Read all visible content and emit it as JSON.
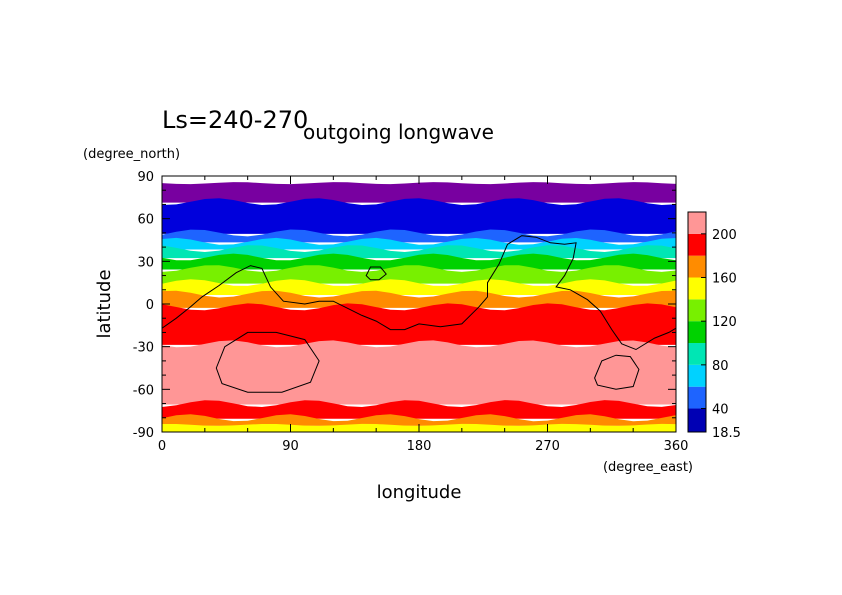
{
  "chart_data": {
    "type": "heatmap",
    "period_label": "Ls=240-270",
    "title": "outgoing longwave",
    "xlabel": "longitude",
    "ylabel": "latitude",
    "x_units": "(degree_east)",
    "y_units": "(degree_north)",
    "xlim": [
      0,
      360
    ],
    "ylim": [
      -90,
      90
    ],
    "x_ticks": [
      "0",
      "90",
      "180",
      "270",
      "360"
    ],
    "y_ticks": [
      "90",
      "60",
      "30",
      "0",
      "-30",
      "-60",
      "-90"
    ],
    "colorbar": {
      "min": 18.5,
      "max": 220,
      "levels": [
        18.5,
        20,
        40,
        60,
        80,
        100,
        120,
        140,
        160,
        180,
        200,
        220
      ],
      "tick_labels": [
        "18.5",
        "40",
        "80",
        "120",
        "160",
        "200"
      ],
      "colors": [
        "#0000b4",
        "#1e64ff",
        "#00d2ff",
        "#00e6b4",
        "#00d200",
        "#78f000",
        "#ffff00",
        "#ff8c00",
        "#ff0000",
        "#ff9696"
      ]
    },
    "band_colors": {
      "polar_north": "#7800a0",
      "dark_blue": "#0000dc"
    },
    "zonal_bands": [
      {
        "lat_top": 85,
        "lat_bottom": 72,
        "level": "polar_north"
      },
      {
        "lat_top": 72,
        "lat_bottom": 50,
        "level": "20-40"
      },
      {
        "lat_top": 50,
        "lat_bottom": 44,
        "level": "40-60"
      },
      {
        "lat_top": 44,
        "lat_bottom": 39,
        "level": "60-80"
      },
      {
        "lat_top": 39,
        "lat_bottom": 33,
        "level": "80-100"
      },
      {
        "lat_top": 33,
        "lat_bottom": 25,
        "level": "100-120"
      },
      {
        "lat_top": 25,
        "lat_bottom": 15,
        "level": "120-140"
      },
      {
        "lat_top": 15,
        "lat_bottom": 7,
        "level": "140-160"
      },
      {
        "lat_top": 7,
        "lat_bottom": -2,
        "level": "160-180"
      },
      {
        "lat_top": -2,
        "lat_bottom": -28,
        "level": "180-200"
      },
      {
        "lat_top": -28,
        "lat_bottom": -70,
        "level": "200-220"
      },
      {
        "lat_top": -70,
        "lat_bottom": -80,
        "level": "180-200"
      },
      {
        "lat_top": -80,
        "lat_bottom": -85,
        "level": "160-180"
      },
      {
        "lat_top": -85,
        "lat_bottom": -90,
        "level": "140-160"
      }
    ],
    "contours": [
      {
        "name": "tharsis-elysium-contour",
        "closed": false,
        "points": [
          [
            0,
            -17
          ],
          [
            10,
            -10
          ],
          [
            20,
            -2
          ],
          [
            28,
            5
          ],
          [
            40,
            13
          ],
          [
            52,
            22
          ],
          [
            62,
            27
          ],
          [
            70,
            25
          ],
          [
            76,
            12
          ],
          [
            85,
            2
          ],
          [
            100,
            0
          ],
          [
            110,
            2
          ],
          [
            120,
            2
          ],
          [
            130,
            -3
          ],
          [
            140,
            -8
          ],
          [
            150,
            -12
          ],
          [
            160,
            -18
          ],
          [
            170,
            -18
          ],
          [
            180,
            -14
          ],
          [
            195,
            -16
          ],
          [
            210,
            -14
          ],
          [
            222,
            -2
          ],
          [
            228,
            5
          ],
          [
            228,
            15
          ],
          [
            236,
            28
          ],
          [
            242,
            42
          ],
          [
            252,
            48
          ],
          [
            262,
            47
          ],
          [
            272,
            43
          ],
          [
            282,
            42
          ],
          [
            290,
            43
          ],
          [
            288,
            32
          ],
          [
            282,
            20
          ],
          [
            276,
            12
          ],
          [
            286,
            10
          ],
          [
            298,
            3
          ],
          [
            307,
            -5
          ],
          [
            315,
            -18
          ],
          [
            322,
            -28
          ],
          [
            332,
            -32
          ],
          [
            345,
            -24
          ],
          [
            355,
            -20
          ],
          [
            360,
            -17
          ]
        ]
      },
      {
        "name": "small-north-contour",
        "closed": true,
        "points": [
          [
            143,
            20
          ],
          [
            146,
            26
          ],
          [
            153,
            26
          ],
          [
            157,
            21
          ],
          [
            152,
            17
          ],
          [
            146,
            17
          ]
        ]
      },
      {
        "name": "hellas-contour",
        "closed": true,
        "points": [
          [
            38,
            -45
          ],
          [
            44,
            -30
          ],
          [
            60,
            -20
          ],
          [
            80,
            -20
          ],
          [
            100,
            -25
          ],
          [
            110,
            -40
          ],
          [
            104,
            -55
          ],
          [
            84,
            -62
          ],
          [
            60,
            -62
          ],
          [
            42,
            -56
          ]
        ]
      },
      {
        "name": "argyre-contour",
        "closed": true,
        "points": [
          [
            303,
            -52
          ],
          [
            308,
            -40
          ],
          [
            318,
            -36
          ],
          [
            328,
            -37
          ],
          [
            334,
            -46
          ],
          [
            330,
            -58
          ],
          [
            318,
            -60
          ],
          [
            305,
            -57
          ]
        ]
      }
    ]
  }
}
